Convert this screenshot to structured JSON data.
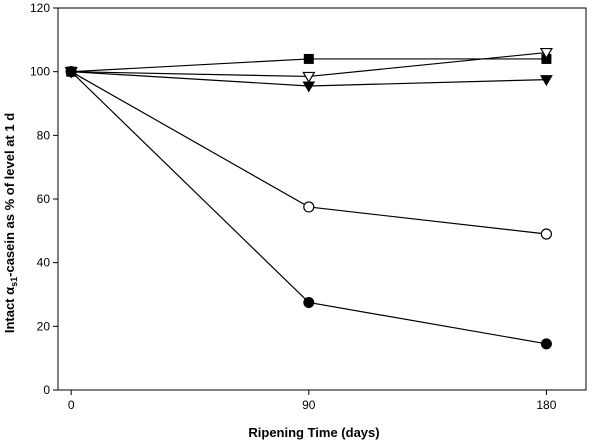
{
  "chart_data": {
    "type": "line",
    "title": "",
    "xlabel": "Ripening Time (days)",
    "ylabel_parts": {
      "prefix": "Intact ",
      "alpha": "α",
      "sub": "s1",
      "suffix": "-casein as % of level at 1 d"
    },
    "x": [
      0,
      90,
      180
    ],
    "xlim": [
      -5,
      195
    ],
    "ylim": [
      0,
      120
    ],
    "xticks": [
      "0",
      "90",
      "180"
    ],
    "yticks": [
      "0",
      "20",
      "40",
      "60",
      "80",
      "100",
      "120"
    ],
    "grid": false,
    "series": [
      {
        "marker": "filled-square",
        "values": [
          100,
          104,
          104
        ]
      },
      {
        "marker": "open-triangle-down",
        "values": [
          100,
          98.5,
          106
        ]
      },
      {
        "marker": "filled-triangle-down",
        "values": [
          100,
          95.5,
          97.5
        ]
      },
      {
        "marker": "open-circle",
        "values": [
          100,
          57.5,
          49
        ]
      },
      {
        "marker": "filled-circle",
        "values": [
          100,
          27.5,
          14.5
        ]
      }
    ]
  }
}
